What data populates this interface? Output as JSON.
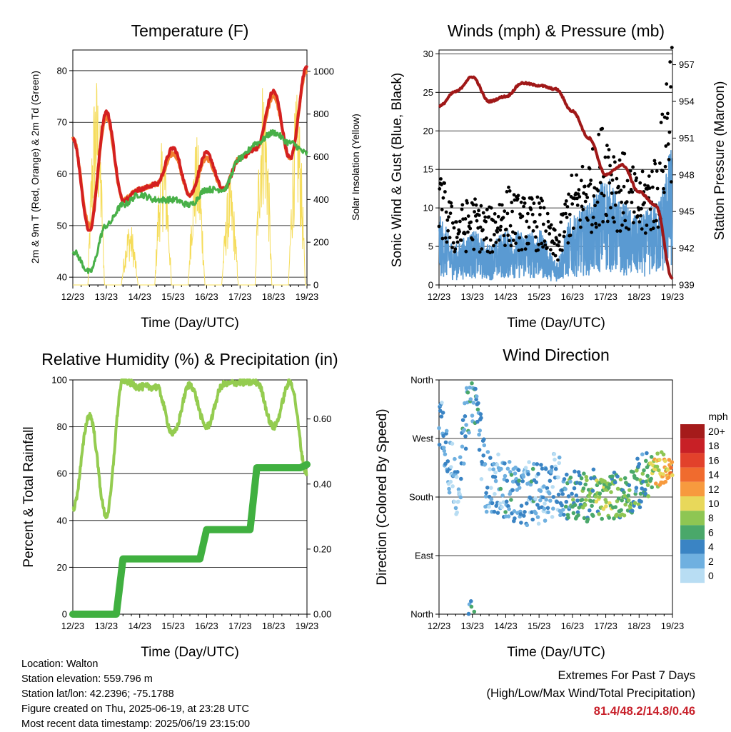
{
  "colors": {
    "red": "#d42020",
    "orange": "#f08030",
    "green": "#48b048",
    "yellow": "#f5dc5a",
    "maroon": "#a01818",
    "blue": "#5a9ad2",
    "black": "#000000",
    "rh_green": "#94cc50",
    "precip_green": "#40b040",
    "extremes": "#c8202a"
  },
  "panels": {
    "temp": {
      "title": "Temperature (F)",
      "ylabel_left": "2m & 9m T (Red, Orange) & 2m Td (Green)",
      "ylabel_right": "Solar Insolation (Yellow)",
      "xlabel": "Time (Day/UTC)",
      "yticks_left": [
        "40",
        "50",
        "60",
        "70",
        "80"
      ],
      "yticks_right": [
        "0",
        "200",
        "400",
        "600",
        "800",
        "1000"
      ],
      "xticks": [
        "12/23",
        "13/23",
        "14/23",
        "15/23",
        "16/23",
        "17/23",
        "18/23",
        "19/23"
      ]
    },
    "wind": {
      "title": "Winds (mph) & Pressure (mb)",
      "ylabel_left": "Sonic Wind & Gust (Blue, Black)",
      "ylabel_right": "Station Pressure (Maroon)",
      "xlabel": "Time (Day/UTC)",
      "yticks_left": [
        "0",
        "5",
        "10",
        "15",
        "20",
        "25",
        "30"
      ],
      "yticks_right": [
        "939",
        "942",
        "945",
        "948",
        "951",
        "954",
        "957"
      ],
      "xticks": [
        "12/23",
        "13/23",
        "14/23",
        "15/23",
        "16/23",
        "17/23",
        "18/23",
        "19/23"
      ]
    },
    "rh": {
      "title": "Relative Humidity (%) & Precipitation (in)",
      "ylabel_left": "Percent & Total Rainfall",
      "xlabel": "Time (Day/UTC)",
      "yticks_left": [
        "0",
        "20",
        "40",
        "60",
        "80",
        "100"
      ],
      "yticks_right": [
        "0.00",
        "0.20",
        "0.40",
        "0.60"
      ],
      "xticks": [
        "12/23",
        "13/23",
        "14/23",
        "15/23",
        "16/23",
        "17/23",
        "18/23",
        "19/23"
      ]
    },
    "dir": {
      "title": "Wind Direction",
      "ylabel_left": "Direction (Colored By Speed)",
      "xlabel": "Time (Day/UTC)",
      "yticks_left": [
        "North",
        "East",
        "South",
        "West",
        "North"
      ],
      "xticks": [
        "12/23",
        "13/23",
        "14/23",
        "15/23",
        "16/23",
        "17/23",
        "18/23",
        "19/23"
      ],
      "legend": {
        "title": "mph",
        "labels": [
          "20+",
          "18",
          "16",
          "14",
          "12",
          "10",
          "8",
          "6",
          "4",
          "2",
          "0"
        ],
        "colors": [
          "#a51b1b",
          "#c82026",
          "#e2412b",
          "#f06b2e",
          "#f79a3e",
          "#e8d85a",
          "#8ec653",
          "#4aa86a",
          "#3a84c4",
          "#6fb0e0",
          "#b8ddf3"
        ]
      }
    }
  },
  "footer": {
    "location": "Location: Walton",
    "elevation": "Station elevation: 559.796 m",
    "latlon": "Station lat/lon: 42.2396; -75.1788",
    "created": "Figure created on Thu, 2025-06-19, at 23:28 UTC",
    "recent": "Most recent data timestamp: 2025/06/19 23:15:00"
  },
  "extremes": {
    "heading": "Extremes For Past 7 Days",
    "subheading": "(High/Low/Max Wind/Total Precipitation)",
    "values": "81.4/48.2/14.8/0.46"
  },
  "chart_data": [
    {
      "type": "line",
      "title": "Temperature (F)",
      "xlabel": "Time (Day/UTC)",
      "ylabel": "2m & 9m T (Red, Orange) & 2m Td (Green)",
      "ylabel_right": "Solar Insolation (Yellow)",
      "x": [
        "12/23",
        "12.5",
        "13/23",
        "13.5",
        "14/23",
        "14.5",
        "15/23",
        "15.5",
        "16/23",
        "16.5",
        "17/23",
        "17.5",
        "18/23",
        "18.5",
        "19/23"
      ],
      "ylim": [
        38.5,
        84
      ],
      "ylim_right": [
        0,
        1100
      ],
      "series": [
        {
          "name": "2m T",
          "axis": "left",
          "values": [
            67,
            49,
            72,
            55,
            57,
            58,
            65,
            56,
            64,
            57,
            63,
            65,
            76,
            63,
            81
          ]
        },
        {
          "name": "9m T",
          "axis": "left",
          "values": [
            67,
            50,
            71,
            55,
            57,
            58,
            64,
            56,
            63,
            57,
            63,
            65,
            75,
            63,
            80
          ]
        },
        {
          "name": "2m Td",
          "axis": "left",
          "values": [
            45,
            41,
            50,
            54,
            56,
            55,
            55,
            54,
            57,
            57,
            63,
            66,
            68,
            66,
            64
          ]
        },
        {
          "name": "Solar Insolation",
          "axis": "right",
          "values": [
            0,
            0,
            1000,
            0,
            300,
            0,
            700,
            0,
            700,
            0,
            500,
            0,
            1000,
            0,
            900
          ]
        }
      ]
    },
    {
      "type": "line",
      "title": "Winds (mph) & Pressure (mb)",
      "xlabel": "Time (Day/UTC)",
      "ylabel": "Sonic Wind & Gust (Blue, Black)",
      "ylabel_right": "Station Pressure (Maroon)",
      "x": [
        "12/23",
        "12.5",
        "13/23",
        "13.5",
        "14/23",
        "14.5",
        "15/23",
        "15.5",
        "16/23",
        "16.5",
        "17/23",
        "17.5",
        "18/23",
        "18.5",
        "19/23"
      ],
      "ylim": [
        0,
        30
      ],
      "ylim_right": [
        939,
        958
      ],
      "series": [
        {
          "name": "Sonic Wind",
          "axis": "left",
          "values": [
            5,
            3,
            4,
            3,
            4,
            4,
            4,
            2,
            5,
            6,
            8,
            6,
            5,
            6,
            10
          ]
        },
        {
          "name": "Gust",
          "axis": "left",
          "values": [
            10,
            7,
            8,
            7,
            9,
            8,
            8,
            5,
            10,
            12,
            15,
            12,
            10,
            12,
            24
          ]
        },
        {
          "name": "Station Pressure",
          "axis": "right",
          "values": [
            953.6,
            954.8,
            956.0,
            954.0,
            954.4,
            955.5,
            955.3,
            955.0,
            953.2,
            951.0,
            948.0,
            948.8,
            946.6,
            945.5,
            939.5
          ]
        }
      ]
    },
    {
      "type": "line",
      "title": "Relative Humidity (%) & Precipitation (in)",
      "xlabel": "Time (Day/UTC)",
      "ylabel": "Percent & Total Rainfall",
      "x": [
        "12/23",
        "12.5",
        "13/23",
        "13.5",
        "14/23",
        "14.5",
        "15/23",
        "15.5",
        "16/23",
        "16.5",
        "17/23",
        "17.5",
        "18/23",
        "18.5",
        "19/23"
      ],
      "ylim": [
        0,
        100
      ],
      "ylim_right": [
        0,
        0.72
      ],
      "series": [
        {
          "name": "Relative Humidity",
          "axis": "left",
          "values": [
            45,
            85,
            42,
            100,
            97,
            97,
            77,
            98,
            80,
            98,
            99,
            99,
            80,
            99,
            60
          ]
        },
        {
          "name": "Total Precipitation",
          "axis": "right",
          "values": [
            0,
            0,
            0,
            0.17,
            0.17,
            0.17,
            0.17,
            0.17,
            0.26,
            0.26,
            0.26,
            0.45,
            0.45,
            0.45,
            0.46
          ]
        }
      ]
    },
    {
      "type": "scatter",
      "title": "Wind Direction",
      "xlabel": "Time (Day/UTC)",
      "ylabel": "Direction (Colored By Speed)",
      "yticks": [
        "North",
        "East",
        "South",
        "West",
        "North"
      ],
      "ylim": [
        0,
        360
      ],
      "x": [
        "12/23",
        "12.5",
        "13/23",
        "13.5",
        "14/23",
        "14.5",
        "15/23",
        "15.5",
        "16/23",
        "16.5",
        "17/23",
        "17.5",
        "18/23",
        "18.5",
        "19/23"
      ],
      "series": [
        {
          "name": "Direction",
          "values": [
            300,
            200,
            340,
            200,
            190,
            180,
            190,
            200,
            180,
            180,
            180,
            180,
            200,
            220,
            220
          ]
        },
        {
          "name": "Speed",
          "values": [
            3,
            2,
            4,
            2,
            3,
            3,
            3,
            2,
            5,
            6,
            8,
            6,
            5,
            9,
            12
          ]
        }
      ]
    }
  ]
}
